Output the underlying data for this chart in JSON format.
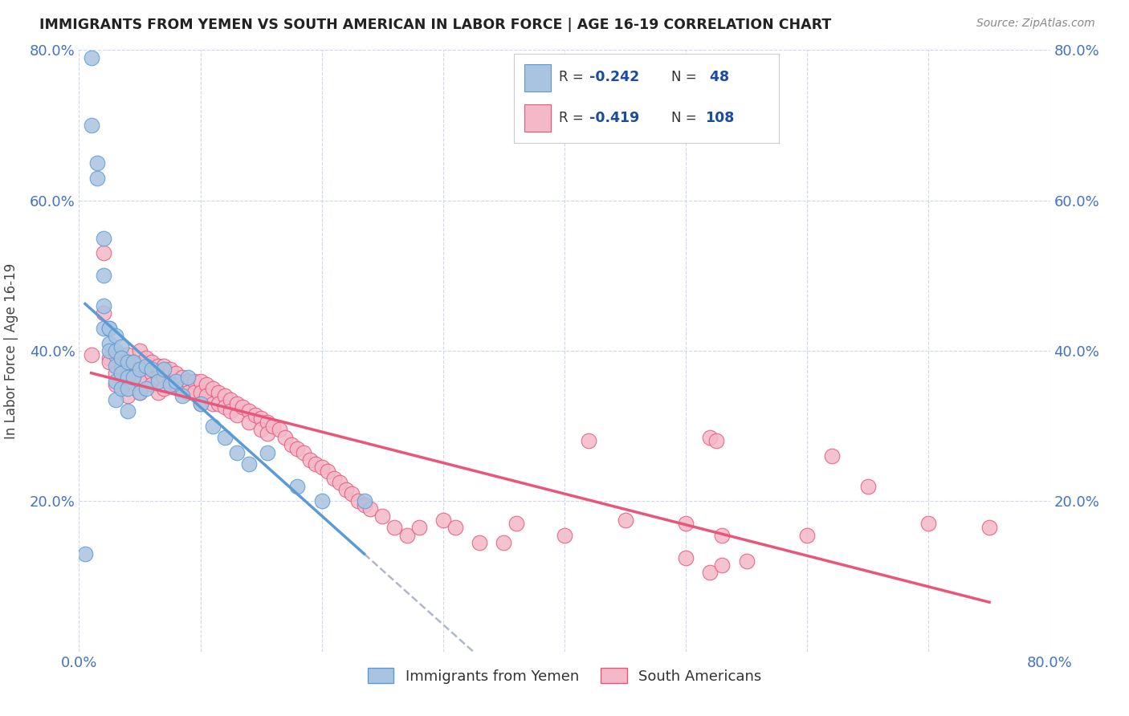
{
  "title": "IMMIGRANTS FROM YEMEN VS SOUTH AMERICAN IN LABOR FORCE | AGE 16-19 CORRELATION CHART",
  "source": "Source: ZipAtlas.com",
  "ylabel": "In Labor Force | Age 16-19",
  "xlim": [
    0.0,
    0.8
  ],
  "ylim": [
    0.0,
    0.8
  ],
  "color_yemen": "#a8c4e0",
  "color_yemen_line": "#5b9bd5",
  "color_south": "#f4b8c8",
  "color_south_line": "#e8567a",
  "color_dashed": "#b0b8c8",
  "legend_label1": "Immigrants from Yemen",
  "legend_label2": "South Americans",
  "yemen_x": [
    0.005,
    0.01,
    0.01,
    0.015,
    0.015,
    0.02,
    0.02,
    0.02,
    0.02,
    0.025,
    0.025,
    0.025,
    0.025,
    0.03,
    0.03,
    0.03,
    0.03,
    0.03,
    0.035,
    0.035,
    0.035,
    0.035,
    0.04,
    0.04,
    0.04,
    0.04,
    0.045,
    0.045,
    0.05,
    0.05,
    0.055,
    0.055,
    0.06,
    0.065,
    0.07,
    0.075,
    0.08,
    0.085,
    0.09,
    0.1,
    0.11,
    0.12,
    0.13,
    0.14,
    0.155,
    0.18,
    0.2,
    0.235
  ],
  "yemen_y": [
    0.13,
    0.79,
    0.7,
    0.65,
    0.63,
    0.55,
    0.5,
    0.46,
    0.43,
    0.43,
    0.43,
    0.41,
    0.4,
    0.42,
    0.4,
    0.38,
    0.36,
    0.335,
    0.405,
    0.39,
    0.37,
    0.35,
    0.385,
    0.365,
    0.35,
    0.32,
    0.385,
    0.365,
    0.375,
    0.345,
    0.38,
    0.35,
    0.375,
    0.36,
    0.375,
    0.355,
    0.36,
    0.34,
    0.365,
    0.33,
    0.3,
    0.285,
    0.265,
    0.25,
    0.265,
    0.22,
    0.2,
    0.2
  ],
  "south_x": [
    0.01,
    0.02,
    0.02,
    0.025,
    0.025,
    0.03,
    0.03,
    0.03,
    0.035,
    0.035,
    0.04,
    0.04,
    0.04,
    0.04,
    0.04,
    0.045,
    0.045,
    0.05,
    0.05,
    0.05,
    0.05,
    0.055,
    0.055,
    0.055,
    0.06,
    0.06,
    0.06,
    0.065,
    0.065,
    0.065,
    0.07,
    0.07,
    0.07,
    0.075,
    0.075,
    0.08,
    0.08,
    0.085,
    0.085,
    0.09,
    0.09,
    0.095,
    0.095,
    0.1,
    0.1,
    0.1,
    0.105,
    0.105,
    0.11,
    0.11,
    0.115,
    0.115,
    0.12,
    0.12,
    0.125,
    0.125,
    0.13,
    0.13,
    0.135,
    0.14,
    0.14,
    0.145,
    0.15,
    0.15,
    0.155,
    0.155,
    0.16,
    0.165,
    0.17,
    0.175,
    0.18,
    0.185,
    0.19,
    0.195,
    0.2,
    0.205,
    0.21,
    0.215,
    0.22,
    0.225,
    0.23,
    0.235,
    0.24,
    0.25,
    0.26,
    0.27,
    0.28,
    0.3,
    0.31,
    0.33,
    0.35,
    0.36,
    0.4,
    0.42,
    0.45,
    0.5,
    0.52,
    0.525,
    0.53,
    0.55,
    0.6,
    0.62,
    0.65,
    0.7,
    0.75,
    0.52,
    0.53,
    0.5
  ],
  "south_y": [
    0.395,
    0.53,
    0.45,
    0.39,
    0.385,
    0.395,
    0.37,
    0.355,
    0.395,
    0.375,
    0.395,
    0.38,
    0.37,
    0.36,
    0.34,
    0.385,
    0.365,
    0.4,
    0.375,
    0.36,
    0.345,
    0.39,
    0.375,
    0.36,
    0.385,
    0.37,
    0.355,
    0.38,
    0.365,
    0.345,
    0.38,
    0.365,
    0.35,
    0.375,
    0.36,
    0.37,
    0.355,
    0.365,
    0.35,
    0.36,
    0.345,
    0.36,
    0.345,
    0.36,
    0.345,
    0.33,
    0.355,
    0.34,
    0.35,
    0.33,
    0.345,
    0.33,
    0.34,
    0.325,
    0.335,
    0.32,
    0.33,
    0.315,
    0.325,
    0.32,
    0.305,
    0.315,
    0.31,
    0.295,
    0.305,
    0.29,
    0.3,
    0.295,
    0.285,
    0.275,
    0.27,
    0.265,
    0.255,
    0.25,
    0.245,
    0.24,
    0.23,
    0.225,
    0.215,
    0.21,
    0.2,
    0.195,
    0.19,
    0.18,
    0.165,
    0.155,
    0.165,
    0.175,
    0.165,
    0.145,
    0.145,
    0.17,
    0.155,
    0.28,
    0.175,
    0.17,
    0.285,
    0.28,
    0.155,
    0.12,
    0.155,
    0.26,
    0.22,
    0.17,
    0.165,
    0.105,
    0.115,
    0.125
  ]
}
